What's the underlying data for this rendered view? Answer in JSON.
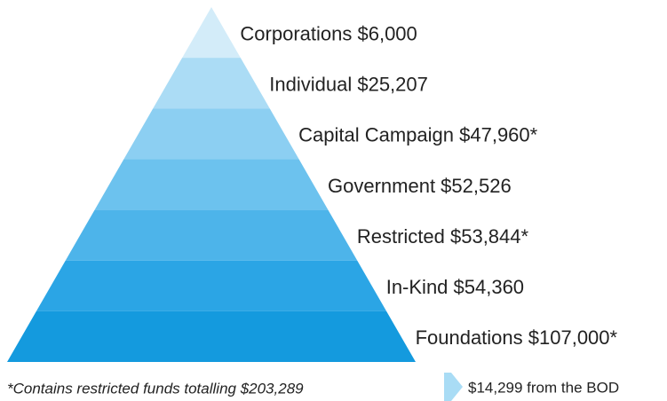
{
  "layers": [
    {
      "label": "Corporations $6,000",
      "color": "#d3ecf9"
    },
    {
      "label": "Individual $25,207",
      "color": "#abdcf5"
    },
    {
      "label": "Capital Campaign $47,960*",
      "color": "#8ccff2"
    },
    {
      "label": "Government $52,526",
      "color": "#6cc2ee"
    },
    {
      "label": "Restricted $53,844*",
      "color": "#4db4ea"
    },
    {
      "label": "In-Kind $54,360",
      "color": "#2ba5e5"
    },
    {
      "label": "Foundations $107,000*",
      "color": "#149ade"
    }
  ],
  "footnote": "*Contains restricted funds totalling $203,289",
  "legend": {
    "label": "$14,299 from the BOD",
    "color": "#a9dcf5"
  }
}
